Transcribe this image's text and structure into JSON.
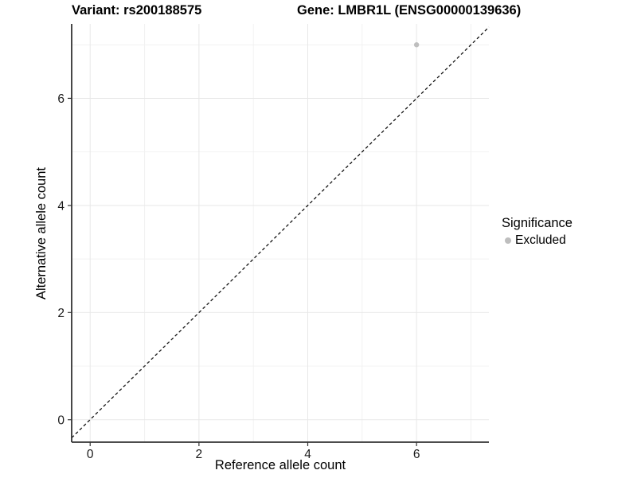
{
  "colors": {
    "background": "#ffffff",
    "grid_major": "#e8e8e8",
    "grid_minor": "#f2f2f2",
    "axis_line": "#333333",
    "tick_mark": "#333333",
    "tick_label": "#1a1a1a",
    "point": "#bebebe",
    "reference_line": "#000000"
  },
  "chart_data": {
    "type": "scatter",
    "title_left": "Variant: rs200188575",
    "title_right": "Gene: LMBR1L (ENSG00000139636)",
    "xlabel": "Reference allele count",
    "ylabel": "Alternative allele count",
    "xlim": [
      -0.34,
      7.33
    ],
    "ylim": [
      -0.42,
      7.39
    ],
    "x_major_ticks": [
      0,
      2,
      4,
      6
    ],
    "y_major_ticks": [
      0,
      2,
      4,
      6
    ],
    "x_minor_ticks": [
      1,
      3,
      5,
      7
    ],
    "y_minor_ticks": [
      1,
      3,
      5,
      7
    ],
    "grid": true,
    "reference_line": {
      "type": "identity",
      "slope": 1,
      "intercept": 0,
      "style": "dashed"
    },
    "series": [
      {
        "name": "Excluded",
        "color": "#bebebe",
        "points": [
          {
            "x": 6,
            "y": 7
          }
        ]
      }
    ],
    "legend": {
      "title": "Significance",
      "position": "right",
      "items": [
        {
          "label": "Excluded",
          "color": "#bebebe"
        }
      ]
    }
  }
}
